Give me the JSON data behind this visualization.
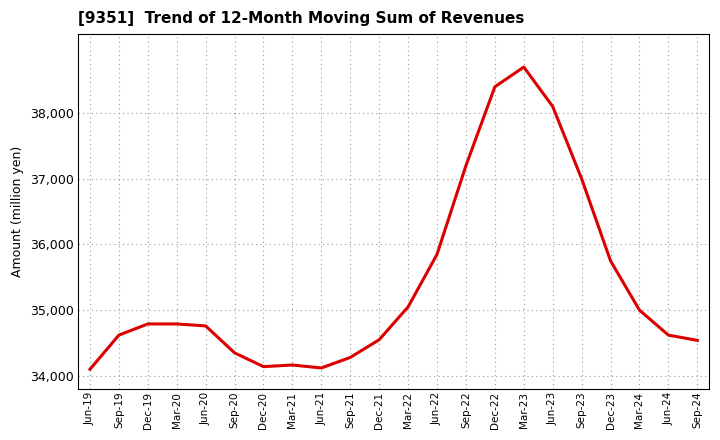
{
  "title": "[9351]  Trend of 12-Month Moving Sum of Revenues",
  "ylabel": "Amount (million yen)",
  "line_color": "#dd0000",
  "line_width": 2.2,
  "background_color": "#ffffff",
  "grid_color": "#999999",
  "ylim": [
    33800,
    39200
  ],
  "yticks": [
    34000,
    35000,
    36000,
    37000,
    38000
  ],
  "labels": [
    "Jun-19",
    "Sep-19",
    "Dec-19",
    "Mar-20",
    "Jun-20",
    "Sep-20",
    "Dec-20",
    "Mar-21",
    "Jun-21",
    "Sep-21",
    "Dec-21",
    "Mar-22",
    "Jun-22",
    "Sep-22",
    "Dec-22",
    "Mar-23",
    "Jun-23",
    "Sep-23",
    "Dec-23",
    "Mar-24",
    "Jun-24",
    "Sep-24"
  ],
  "values": [
    34100,
    34620,
    34790,
    34790,
    34760,
    34350,
    34140,
    34165,
    34120,
    34280,
    34550,
    35050,
    35850,
    37200,
    38400,
    38700,
    38100,
    37000,
    35750,
    35000,
    34620,
    34540
  ]
}
